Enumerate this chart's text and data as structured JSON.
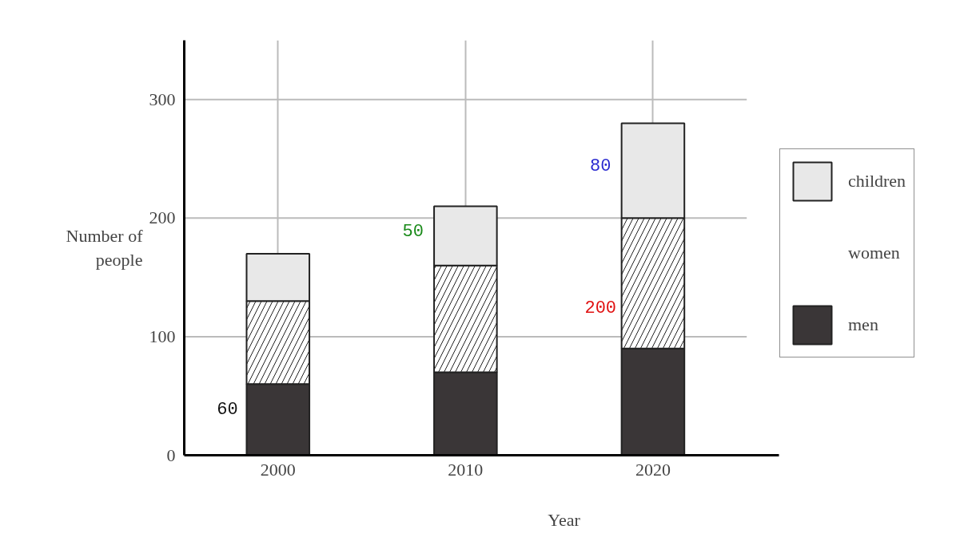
{
  "chart_data": {
    "type": "bar",
    "stacked": true,
    "xlabel": "Year",
    "ylabel": "Number of\npeople",
    "categories": [
      "2000",
      "2010",
      "2020"
    ],
    "series": [
      {
        "name": "men",
        "color": "#3a3637",
        "values": [
          60,
          70,
          90
        ]
      },
      {
        "name": "women",
        "color": "#ffffff",
        "values": [
          70,
          90,
          110
        ]
      },
      {
        "name": "children",
        "color": "#e8e8e8",
        "values": [
          40,
          50,
          80
        ]
      }
    ],
    "ylim": [
      0,
      350
    ],
    "yticks": [
      0,
      100,
      200,
      300
    ],
    "grid": true,
    "legend": "right",
    "annotations": [
      "60",
      "50",
      "80",
      "200"
    ]
  }
}
